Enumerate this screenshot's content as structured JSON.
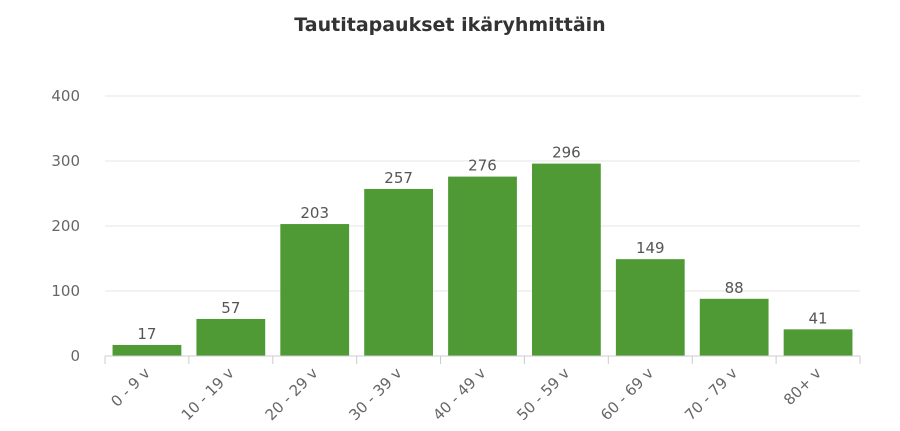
{
  "chart_data": {
    "type": "bar",
    "title": "Tautitapaukset ikäryhmittäin",
    "categories": [
      "0 - 9 v",
      "10 - 19 v",
      "20 - 29 v",
      "30 - 39 v",
      "40 - 49 v",
      "50 - 59 v",
      "60 - 69 v",
      "70 - 79 v",
      "80+ v"
    ],
    "values": [
      17,
      57,
      203,
      257,
      276,
      296,
      149,
      88,
      41
    ],
    "xlabel": "",
    "ylabel": "",
    "ylim": [
      0,
      400
    ],
    "yticks": [
      0,
      100,
      200,
      300,
      400
    ],
    "grid": true,
    "legend": "none",
    "bar_color": "#4f9a34",
    "grid_color": "#e6e6e6",
    "axis_color": "#cccccc"
  }
}
